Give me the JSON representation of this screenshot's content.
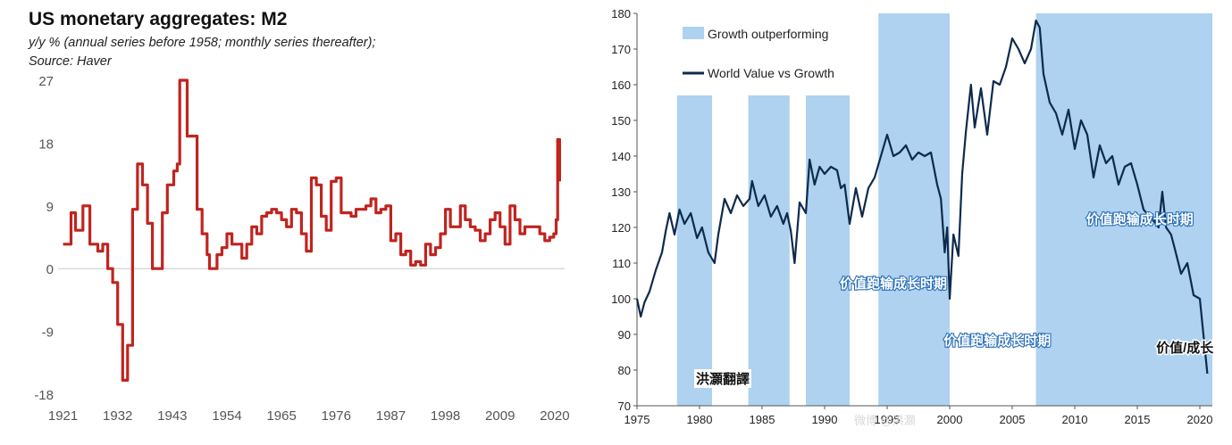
{
  "chart_data": [
    {
      "type": "line",
      "title": "US monetary aggregates: M2",
      "subtitle_lines": [
        "y/y % (annual series before 1958; monthly series thereafter);",
        "Source: Haver"
      ],
      "xlabel": "",
      "ylabel": "",
      "ylim": [
        -18,
        27
      ],
      "yticks": [
        27,
        18,
        9,
        0,
        -9,
        -18
      ],
      "xlim": [
        1920,
        2022
      ],
      "xticks": [
        1921,
        1932,
        1943,
        1954,
        1965,
        1976,
        1987,
        1998,
        2009,
        2020
      ],
      "line_color": "#c0241f",
      "series": [
        {
          "x": [
            1921,
            1922,
            1922.6,
            1923,
            1923.5,
            1924,
            1925,
            1926,
            1926.4,
            1927,
            1928,
            1928.3,
            1929,
            1929.5,
            1930,
            1930.5,
            1931,
            1931.4,
            1932,
            1932.7,
            1933,
            1933.5,
            1934,
            1934.3,
            1935,
            1935.5,
            1936,
            1936.5,
            1937,
            1937.6,
            1938,
            1939,
            1940,
            1940.5,
            1941,
            1941.5,
            1942,
            1943,
            1943.3,
            1944,
            1944.5,
            1945,
            1946,
            1946.5,
            1947,
            1947.6,
            1948,
            1948.6,
            1949,
            1950,
            1950.5,
            1951,
            1952,
            1953,
            1954,
            1955,
            1956,
            1957,
            1958,
            1959,
            1960,
            1961,
            1962,
            1963,
            1964,
            1965,
            1966,
            1967,
            1968,
            1969,
            1970,
            1971,
            1972,
            1973,
            1974,
            1975,
            1976,
            1977,
            1978,
            1979,
            1980,
            1981,
            1982,
            1983,
            1984,
            1985,
            1986,
            1987,
            1988,
            1989,
            1990,
            1991,
            1992,
            1993,
            1994,
            1995,
            1996,
            1997,
            1998,
            1999,
            2000,
            2001,
            2002,
            2003,
            2004,
            2005,
            2006,
            2007,
            2008,
            2009,
            2010,
            2011,
            2012,
            2013,
            2014,
            2015,
            2016,
            2017,
            2018,
            2019,
            2019.8,
            2020.3,
            2020.6,
            2021
          ],
          "values": [
            3.5,
            3.5,
            8,
            8,
            5.5,
            5.5,
            9,
            9,
            3.5,
            3.5,
            2.5,
            2.5,
            3.5,
            3.5,
            0,
            0,
            -2,
            -2,
            -8,
            -8,
            -16,
            -16,
            -11,
            -11,
            8.5,
            8.5,
            15,
            15,
            12,
            12,
            6.5,
            0,
            0,
            0,
            8,
            8,
            12,
            12,
            14,
            15,
            27,
            27,
            19,
            19,
            19,
            19,
            8.5,
            8.5,
            5,
            2,
            0,
            0,
            2,
            3,
            5,
            3.5,
            3.5,
            1.5,
            3.5,
            6,
            5,
            7.5,
            8,
            8.5,
            8,
            7,
            6,
            8.5,
            8,
            5,
            2.5,
            13,
            12,
            7.5,
            5.5,
            12.5,
            13,
            8,
            8,
            7.5,
            8.5,
            8.5,
            9,
            10,
            8,
            8.5,
            9,
            4,
            5,
            2,
            2.5,
            0.5,
            1,
            0.5,
            3.5,
            2,
            3,
            5,
            8.5,
            6,
            6,
            9,
            7,
            6,
            5.5,
            4,
            5,
            7,
            8,
            6,
            3.5,
            9,
            7,
            5,
            6,
            6,
            6,
            5,
            4,
            4.5,
            5,
            7,
            18.5,
            12.5
          ]
        }
      ]
    },
    {
      "type": "line",
      "title": "",
      "xlabel": "",
      "ylabel": "",
      "ylim": [
        70,
        180
      ],
      "yticks": [
        70,
        80,
        90,
        100,
        110,
        120,
        130,
        140,
        150,
        160,
        170,
        180
      ],
      "xlim": [
        1975,
        2021
      ],
      "xticks": [
        1975,
        1980,
        1985,
        1990,
        1995,
        2000,
        2005,
        2010,
        2015,
        2020
      ],
      "legend": [
        "Growth outperforming",
        "World Value vs Growth"
      ],
      "legend_placement": "top-left",
      "band_color": "#aed2f0",
      "line_color": "#0e2a4c",
      "shaded_periods": [
        {
          "start": 1978.2,
          "end": 1981
        },
        {
          "start": 1983.9,
          "end": 1987.2
        },
        {
          "start": 1988.5,
          "end": 1992
        },
        {
          "start": 1994.3,
          "end": 2000
        },
        {
          "start": 2006.9,
          "end": 2021
        }
      ],
      "annotations": [
        {
          "text": "价值跑输成长时期",
          "x": 1995.5,
          "y": 103
        },
        {
          "text": "价值跑输成长时期",
          "x": 2003.8,
          "y": 87
        },
        {
          "text": "价值跑输成长时期",
          "x": 2015.2,
          "y": 121
        },
        {
          "text": "价值/成长",
          "x": 2018.8,
          "y": 85
        }
      ],
      "series": [
        {
          "name": "World Value vs Growth",
          "x": [
            1975,
            1975.3,
            1975.6,
            1976,
            1976.5,
            1977,
            1977.3,
            1977.6,
            1978,
            1978.4,
            1978.8,
            1979.3,
            1979.8,
            1980.2,
            1980.7,
            1981.2,
            1981.5,
            1982,
            1982.5,
            1983,
            1983.5,
            1984,
            1984.2,
            1984.7,
            1985.2,
            1985.7,
            1986.2,
            1986.7,
            1987,
            1987.3,
            1987.6,
            1988,
            1988.5,
            1988.8,
            1989.2,
            1989.6,
            1990,
            1990.5,
            1991,
            1991.3,
            1991.6,
            1992,
            1992.5,
            1993,
            1993.5,
            1994,
            1994.5,
            1995,
            1995.5,
            1996,
            1996.5,
            1997,
            1997.5,
            1998,
            1998.5,
            1999,
            1999.3,
            1999.6,
            1999.8,
            2000,
            2000.3,
            2000.7,
            2001,
            2001.3,
            2001.7,
            2002,
            2002.5,
            2003,
            2003.5,
            2004,
            2004.5,
            2005,
            2005.5,
            2006,
            2006.5,
            2006.9,
            2007.2,
            2007.5,
            2008,
            2008.5,
            2009,
            2009.5,
            2010,
            2010.5,
            2011,
            2011.5,
            2012,
            2012.5,
            2013,
            2013.5,
            2014,
            2014.5,
            2015,
            2015.5,
            2016,
            2016.3,
            2016.7,
            2017,
            2017.3,
            2017.7,
            2018,
            2018.5,
            2019,
            2019.5,
            2020,
            2020.4,
            2020.6
          ],
          "values": [
            100,
            95,
            99,
            102,
            108,
            113,
            119,
            124,
            118,
            125,
            121,
            124,
            117,
            120,
            113,
            110,
            118,
            128,
            124,
            129,
            126,
            128,
            133,
            126,
            129,
            123,
            126,
            121,
            124,
            119,
            110,
            127,
            124,
            139,
            132,
            137,
            135,
            137,
            136,
            131,
            132,
            121,
            131,
            123,
            131,
            134,
            140,
            146,
            140,
            141,
            143,
            139,
            141,
            140,
            141,
            132,
            128,
            113,
            120,
            100,
            118,
            112,
            135,
            147,
            160,
            148,
            159,
            146,
            161,
            160,
            165,
            173,
            170,
            166,
            170,
            178,
            176,
            163,
            155,
            152,
            146,
            153,
            142,
            150,
            146,
            134,
            143,
            138,
            140,
            132,
            137,
            138,
            132,
            125,
            123,
            122,
            120,
            130,
            120,
            118,
            114,
            107,
            110,
            101,
            100,
            86,
            79
          ]
        }
      ]
    }
  ],
  "left_title": "US monetary aggregates: M2",
  "left_subtitle_1": "y/y % (annual series before 1958; monthly series thereafter);",
  "left_subtitle_2": "Source: Haver",
  "legend_band_label": "Growth outperforming",
  "legend_line_label": "World Value vs Growth",
  "credit_text": "洪灝翻譯",
  "watermark_text": "微博 @洪灝"
}
